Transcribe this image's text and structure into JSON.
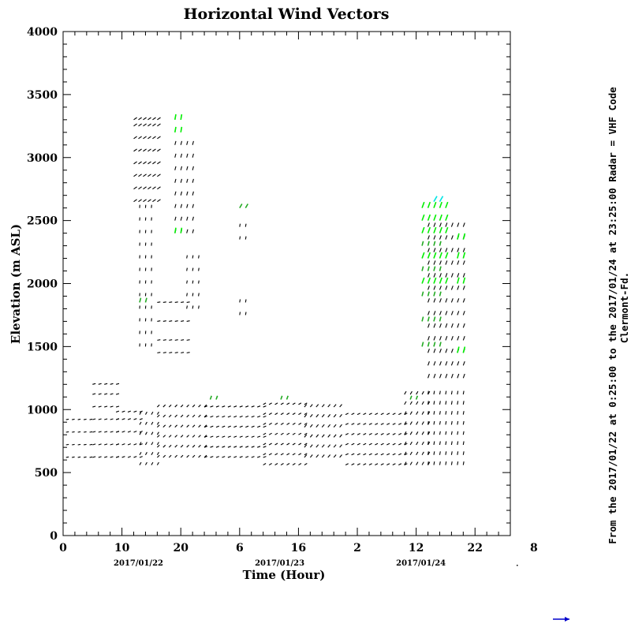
{
  "chart_data": {
    "type": "scatter",
    "title": "Horizontal Wind Vectors",
    "xlabel": "Time (Hour)",
    "ylabel": "Elevation (m ASL)",
    "xlim": [
      0,
      76
    ],
    "ylim": [
      0,
      4000
    ],
    "x_tick_labels": [
      "0",
      "10",
      "20",
      "6",
      "16",
      "2",
      "12",
      "22",
      "8"
    ],
    "y_tick_labels": [
      "0",
      "500",
      "1000",
      "1500",
      "2000",
      "2500",
      "3000",
      "3500",
      "4000"
    ],
    "date_labels": [
      "2017/01/22",
      "2017/01/23",
      "2017/01/24"
    ],
    "side_text": [
      "From the 2017/01/22 at  0:25:00 to the 2017/01/24 at 23:25:00 Radar = VHF Code",
      "Clermont-Fd."
    ],
    "grid": false,
    "colors": {
      "slow": "#000000",
      "medium": "#22aa22",
      "fast": "#00ee00",
      "fastest": "#00e5e5",
      "reference": "#0000cc"
    },
    "vector_groups": [
      {
        "color": "slow",
        "t_start": 0.5,
        "t_end": 5,
        "t_step": 1,
        "z_levels": [
          620,
          720,
          820,
          920
        ],
        "angle_deg": 10,
        "length": 0.7
      },
      {
        "color": "slow",
        "t_start": 5,
        "t_end": 9,
        "t_step": 1,
        "z_levels": [
          620,
          720,
          820,
          920,
          1020,
          1120,
          1200
        ],
        "angle_deg": 15,
        "length": 0.8
      },
      {
        "color": "slow",
        "t_start": 9,
        "t_end": 13,
        "t_step": 1,
        "z_levels": [
          620,
          720,
          820,
          920,
          980
        ],
        "angle_deg": 20,
        "length": 0.8
      },
      {
        "color": "slow",
        "t_start": 13,
        "t_end": 16,
        "t_step": 1,
        "z_levels": [
          560,
          640,
          720,
          800,
          880,
          960
        ],
        "angle_deg": 60,
        "length": 0.8
      },
      {
        "color": "slow",
        "t_start": 16,
        "t_end": 24,
        "t_step": 1,
        "z_levels": [
          620,
          700,
          780,
          860,
          940,
          1020
        ],
        "angle_deg": 45,
        "length": 0.8
      },
      {
        "color": "slow",
        "t_start": 24,
        "t_end": 34,
        "t_step": 1,
        "z_levels": [
          620,
          700,
          780,
          860,
          940,
          1020
        ],
        "angle_deg": 20,
        "length": 0.8
      },
      {
        "color": "slow",
        "t_start": 34,
        "t_end": 41,
        "t_step": 1,
        "z_levels": [
          560,
          640,
          720,
          800,
          880,
          960,
          1040
        ],
        "angle_deg": 30,
        "length": 0.8
      },
      {
        "color": "slow",
        "t_start": 41,
        "t_end": 47,
        "t_step": 1,
        "z_levels": [
          620,
          700,
          780,
          860,
          940,
          1020
        ],
        "angle_deg": 50,
        "length": 0.9
      },
      {
        "color": "slow",
        "t_start": 48,
        "t_end": 58,
        "t_step": 1,
        "z_levels": [
          560,
          640,
          720,
          800,
          880,
          960
        ],
        "angle_deg": 25,
        "length": 0.8
      },
      {
        "color": "slow",
        "t_start": 58,
        "t_end": 62,
        "t_step": 1,
        "z_levels": [
          560,
          640,
          720,
          800,
          880,
          960,
          1040,
          1120
        ],
        "angle_deg": 60,
        "length": 0.9
      },
      {
        "color": "slow",
        "t_start": 62,
        "t_end": 68,
        "t_step": 1,
        "z_levels": [
          560,
          640,
          720,
          800,
          880,
          960,
          1040,
          1120
        ],
        "angle_deg": 80,
        "length": 0.9
      },
      {
        "color": "slow",
        "t_start": 12,
        "t_end": 16,
        "t_step": 0.8,
        "z_levels": [
          2650,
          2750,
          2850,
          2950,
          3050,
          3150,
          3250,
          3300
        ],
        "angle_deg": 35,
        "length": 1.0
      },
      {
        "color": "slow",
        "t_start": 13,
        "t_end": 15,
        "t_step": 1,
        "z_levels": [
          1500,
          1600,
          1700,
          1800,
          1900,
          2000,
          2100,
          2200,
          2300,
          2400,
          2500,
          2600
        ],
        "angle_deg": 85,
        "length": 0.8
      },
      {
        "color": "slow",
        "t_start": 16,
        "t_end": 21,
        "t_step": 1,
        "z_levels": [
          1450,
          1550,
          1700,
          1850
        ],
        "angle_deg": 10,
        "length": 0.8
      },
      {
        "color": "slow",
        "t_start": 19,
        "t_end": 22,
        "t_step": 1,
        "z_levels": [
          2400,
          2500,
          2600,
          2700,
          2800,
          2900,
          3000,
          3100
        ],
        "angle_deg": 75,
        "length": 1.0
      },
      {
        "color": "slow",
        "t_start": 21,
        "t_end": 23,
        "t_step": 1,
        "z_levels": [
          1800,
          1900,
          2000,
          2100,
          2200
        ],
        "angle_deg": 80,
        "length": 0.8
      },
      {
        "color": "slow",
        "t_start": 30,
        "t_end": 31,
        "t_step": 1,
        "z_levels": [
          1750,
          1850,
          2350,
          2450
        ],
        "angle_deg": 80,
        "length": 0.8
      },
      {
        "color": "slow",
        "t_start": 62,
        "t_end": 68,
        "t_step": 1,
        "z_levels": [
          1250,
          1350,
          1450,
          1550,
          1650,
          1750,
          1850,
          1950,
          2050,
          2150,
          2250,
          2350,
          2450
        ],
        "angle_deg": 70,
        "length": 1.1
      },
      {
        "color": "medium",
        "t_start": 61,
        "t_end": 64,
        "t_step": 1,
        "z_levels": [
          1500,
          1700,
          1900,
          2100,
          2300
        ],
        "angle_deg": 75,
        "length": 1.2
      },
      {
        "color": "fast",
        "t_start": 61,
        "t_end": 65,
        "t_step": 1,
        "z_levels": [
          2000,
          2200,
          2400,
          2500,
          2600
        ],
        "angle_deg": 70,
        "length": 1.6
      },
      {
        "color": "fast",
        "t_start": 67,
        "t_end": 68,
        "t_step": 1,
        "z_levels": [
          1450,
          2000,
          2200,
          2350
        ],
        "angle_deg": 75,
        "length": 1.6
      },
      {
        "color": "fast",
        "t_start": 19,
        "t_end": 20,
        "t_step": 1,
        "z_levels": [
          3200,
          3300,
          2400
        ],
        "angle_deg": 80,
        "length": 1.4
      },
      {
        "color": "medium",
        "t_start": 13,
        "t_end": 14,
        "t_step": 1,
        "z_levels": [
          1850
        ],
        "angle_deg": 75,
        "length": 1.2
      },
      {
        "color": "medium",
        "t_start": 30,
        "t_end": 31,
        "t_step": 1,
        "z_levels": [
          2600
        ],
        "angle_deg": 60,
        "length": 1.2
      },
      {
        "color": "medium",
        "t_start": 25,
        "t_end": 26,
        "t_step": 1,
        "z_levels": [
          1080
        ],
        "angle_deg": 70,
        "length": 1.0
      },
      {
        "color": "medium",
        "t_start": 37,
        "t_end": 38,
        "t_step": 1,
        "z_levels": [
          1080
        ],
        "angle_deg": 70,
        "length": 1.0
      },
      {
        "color": "medium",
        "t_start": 59,
        "t_end": 60,
        "t_step": 1,
        "z_levels": [
          1080
        ],
        "angle_deg": 70,
        "length": 1.0
      },
      {
        "color": "fastest",
        "t_start": 63,
        "t_end": 64,
        "t_step": 1,
        "z_levels": [
          2650
        ],
        "angle_deg": 60,
        "length": 1.6
      }
    ]
  }
}
